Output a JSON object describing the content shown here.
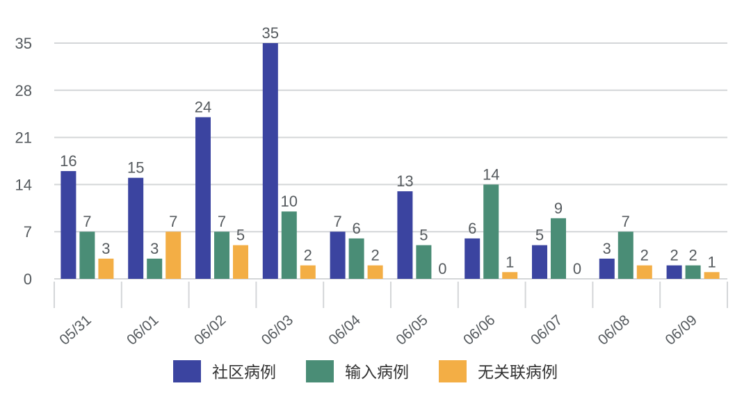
{
  "chart_data": {
    "type": "bar",
    "title": "",
    "xlabel": "",
    "ylabel": "",
    "ylim": [
      0,
      35
    ],
    "yticks": [
      0,
      7,
      14,
      21,
      28,
      35
    ],
    "grid": true,
    "legend_position": "bottom",
    "categories": [
      "05/31",
      "06/01",
      "06/02",
      "06/03",
      "06/04",
      "06/05",
      "06/06",
      "06/07",
      "06/08",
      "06/09"
    ],
    "series": [
      {
        "name": "社区病例",
        "color": "#3b44a0",
        "values": [
          16,
          15,
          24,
          35,
          7,
          13,
          6,
          5,
          3,
          2
        ]
      },
      {
        "name": "输入病例",
        "color": "#4a8d76",
        "values": [
          7,
          3,
          7,
          10,
          6,
          5,
          14,
          9,
          7,
          2
        ]
      },
      {
        "name": "无关联病例",
        "color": "#f3ae45",
        "values": [
          3,
          7,
          5,
          2,
          2,
          0,
          1,
          0,
          2,
          1
        ]
      }
    ]
  }
}
